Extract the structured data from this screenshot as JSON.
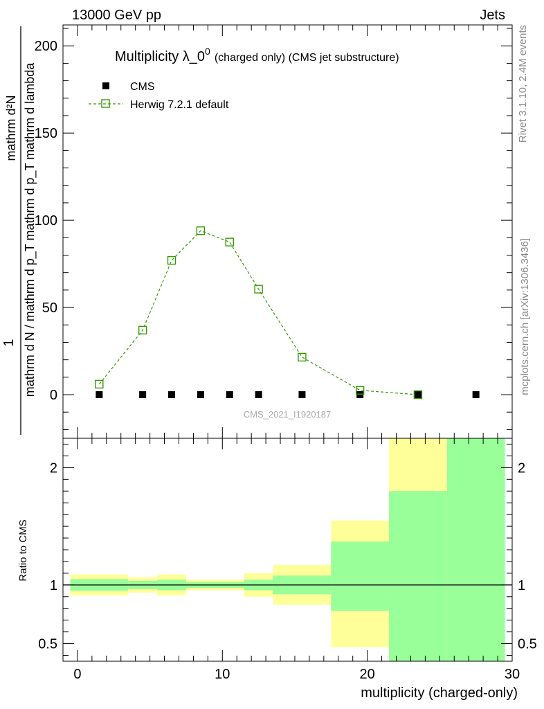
{
  "header": {
    "energy_label": "13000 GeV pp",
    "process_label": "Jets"
  },
  "side": {
    "rivet_label": "Rivet 3.1.10,  2.4M events",
    "mcplots_label": "mcplots.cern.ch [arXiv:1306.3436]"
  },
  "chart_data": [
    {
      "type": "scatter",
      "title_main": "Multiplicity λ_0",
      "title_sup": "0",
      "title_sub": "(charged only) (CMS jet substructure)",
      "ylabel_num": "1",
      "ylabel_den": "mathrm d N / mathrm d p_T mathrm d p_T mathrm d lambda",
      "ylabel_right_num": "mathrm d²N",
      "watermark": "CMS_2021_I1920187",
      "xlim": [
        -1,
        30
      ],
      "ylim": [
        -25,
        212
      ],
      "yticks": [
        0,
        50,
        100,
        150,
        200
      ],
      "legend": [
        {
          "name": "CMS",
          "marker": "filled-square",
          "color": "#000000"
        },
        {
          "name": "Herwig 7.2.1 default",
          "marker": "open-square-dashed",
          "color": "#339900"
        }
      ],
      "series": [
        {
          "name": "CMS",
          "x": [
            1.5,
            4.5,
            6.5,
            8.5,
            10.5,
            12.5,
            15.5,
            19.5,
            23.5,
            27.5
          ],
          "y": [
            0,
            0,
            0,
            0,
            0,
            0,
            0,
            0,
            0,
            0
          ]
        },
        {
          "name": "Herwig 7.2.1 default",
          "x": [
            1.5,
            4.5,
            6.5,
            8.5,
            10.5,
            12.5,
            15.5,
            19.5,
            23.5
          ],
          "y": [
            6,
            37,
            77,
            94,
            87.5,
            60.5,
            21.5,
            2.5,
            0
          ]
        }
      ]
    },
    {
      "type": "area",
      "ylabel": "Ratio to CMS",
      "xlabel": "multiplicity (charged-only)",
      "xlim": [
        -1,
        30
      ],
      "ylim": [
        0.35,
        2.25
      ],
      "xticks": [
        0,
        10,
        20,
        30
      ],
      "yticks": [
        0.5,
        1,
        2
      ],
      "reference_line": 1,
      "bands": [
        {
          "x_low": -0.5,
          "x_high": 3.5,
          "green": [
            0.95,
            1.05
          ],
          "yellow": [
            0.91,
            1.09
          ]
        },
        {
          "x_low": 3.5,
          "x_high": 5.5,
          "green": [
            0.965,
            1.035
          ],
          "yellow": [
            0.935,
            1.065
          ]
        },
        {
          "x_low": 5.5,
          "x_high": 7.5,
          "green": [
            0.955,
            1.045
          ],
          "yellow": [
            0.91,
            1.09
          ]
        },
        {
          "x_low": 7.5,
          "x_high": 11.5,
          "green": [
            0.975,
            1.025
          ],
          "yellow": [
            0.955,
            1.045
          ]
        },
        {
          "x_low": 11.5,
          "x_high": 13.5,
          "green": [
            0.955,
            1.045
          ],
          "yellow": [
            0.9,
            1.1
          ]
        },
        {
          "x_low": 13.5,
          "x_high": 17.5,
          "green": [
            0.92,
            1.08
          ],
          "yellow": [
            0.83,
            1.17
          ]
        },
        {
          "x_low": 17.5,
          "x_high": 21.5,
          "green": [
            0.78,
            1.37
          ],
          "yellow": [
            0.47,
            1.55
          ]
        },
        {
          "x_low": 21.5,
          "x_high": 25.5,
          "green": [
            0.35,
            1.8
          ],
          "yellow": [
            0.35,
            2.25
          ]
        },
        {
          "x_low": 25.5,
          "x_high": 29.5,
          "green": [
            0.35,
            2.25
          ],
          "yellow": [
            0.35,
            2.25
          ]
        }
      ]
    }
  ]
}
